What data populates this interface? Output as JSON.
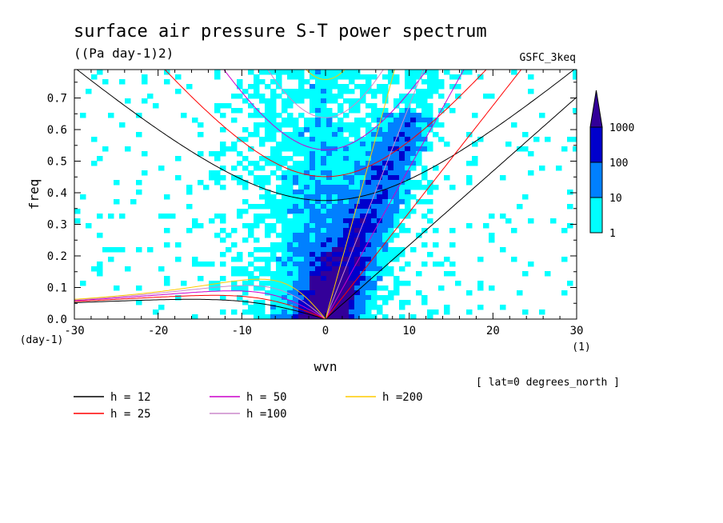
{
  "chart_data": {
    "type": "heatmap",
    "title": "surface air pressure S-T power spectrum",
    "units": "((Pa day-1)2)",
    "model": "GSFC_3keq",
    "xlabel": "wvn",
    "ylabel": "freq",
    "x_unit": "(1)",
    "y_unit": "(day-1)",
    "xlim": [
      -30,
      30
    ],
    "ylim": [
      0,
      0.79
    ],
    "xticks": [
      -30,
      -20,
      -10,
      0,
      10,
      20,
      30
    ],
    "xtick_labels": [
      "-30",
      "-20",
      "-10",
      "0",
      "10",
      "20",
      "30"
    ],
    "yticks": [
      0,
      0.1,
      0.2,
      0.3,
      0.4,
      0.5,
      0.6,
      0.7
    ],
    "ytick_labels": [
      "0.0",
      "0.1",
      "0.2",
      "0.3",
      "0.4",
      "0.5",
      "0.6",
      "0.7"
    ],
    "latitude_note": "[ lat=0 degrees_north ]",
    "colorbar": {
      "levels": [
        1,
        10,
        100,
        1000
      ],
      "labels": [
        "1",
        "10",
        "100",
        "1000"
      ],
      "colors": [
        "#00ffff",
        "#0080ff",
        "#0000cc",
        "#330099"
      ]
    },
    "dispersion_curves": [
      {
        "label": "h = 12",
        "h": 12,
        "color": "#000000"
      },
      {
        "label": "h = 25",
        "h": 25,
        "color": "#ff0000"
      },
      {
        "label": "h = 50",
        "h": 50,
        "color": "#cc00cc"
      },
      {
        "label": "h =100",
        "h": 100,
        "color": "#cc88cc"
      },
      {
        "label": "h =200",
        "h": 200,
        "color": "#ffcc00"
      }
    ]
  }
}
